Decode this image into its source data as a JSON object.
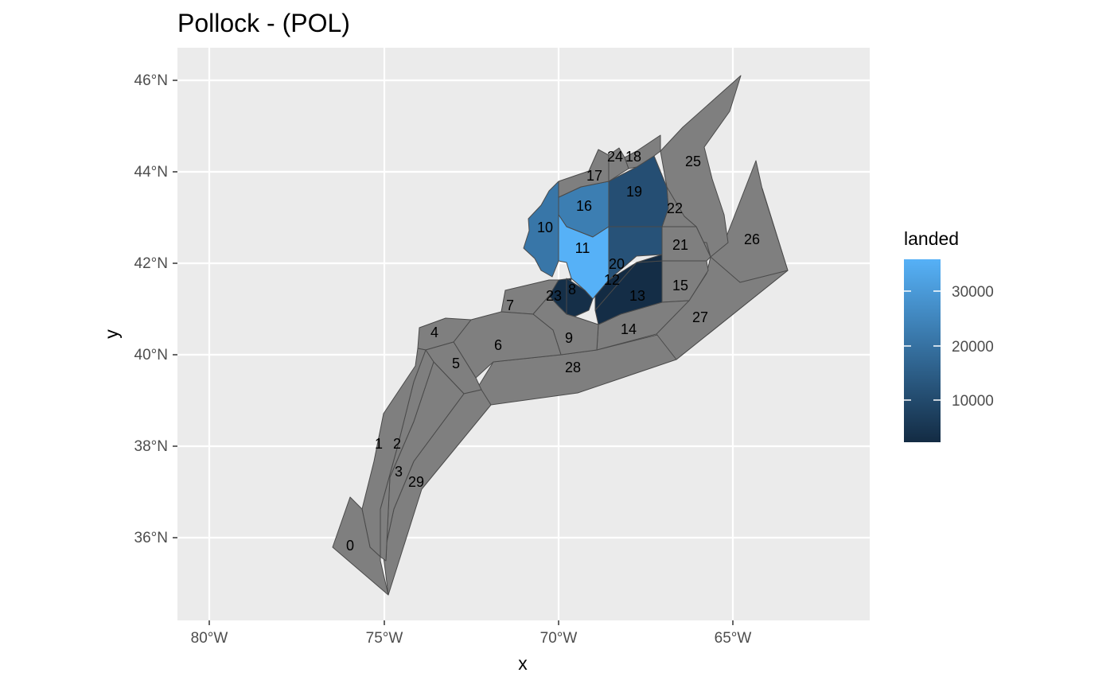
{
  "title": "Pollock - (POL)",
  "axes": {
    "xlabel": "x",
    "ylabel": "y",
    "x_ticks": [
      "80°W",
      "75°W",
      "70°W",
      "65°W"
    ],
    "y_ticks": [
      "36°N",
      "38°N",
      "40°N",
      "42°N",
      "44°N",
      "46°N"
    ]
  },
  "legend": {
    "title": "landed",
    "ticks": [
      "30000",
      "20000",
      "10000"
    ],
    "colors": {
      "high": "#56B1F7",
      "low": "#132B43"
    }
  },
  "colors": {
    "panel": "#EBEBEB",
    "grid": "#FFFFFF",
    "no_data": "#7F7F7F"
  },
  "zones": [
    {
      "id": "0",
      "landed": null
    },
    {
      "id": "1",
      "landed": null
    },
    {
      "id": "2",
      "landed": null
    },
    {
      "id": "3",
      "landed": null
    },
    {
      "id": "4",
      "landed": null
    },
    {
      "id": "5",
      "landed": null
    },
    {
      "id": "6",
      "landed": null
    },
    {
      "id": "7",
      "landed": null
    },
    {
      "id": "8",
      "landed": 3000
    },
    {
      "id": "9",
      "landed": null
    },
    {
      "id": "10",
      "landed": 21000
    },
    {
      "id": "11",
      "landed": 36000
    },
    {
      "id": "12",
      "landed": 2000
    },
    {
      "id": "13",
      "landed": 2500
    },
    {
      "id": "14",
      "landed": null
    },
    {
      "id": "15",
      "landed": null
    },
    {
      "id": "16",
      "landed": 23000
    },
    {
      "id": "17",
      "landed": null
    },
    {
      "id": "18",
      "landed": null
    },
    {
      "id": "19",
      "landed": 11000
    },
    {
      "id": "20",
      "landed": 12000
    },
    {
      "id": "21",
      "landed": null
    },
    {
      "id": "22",
      "landed": null
    },
    {
      "id": "23",
      "landed": 3000
    },
    {
      "id": "24",
      "landed": null
    },
    {
      "id": "25",
      "landed": null
    },
    {
      "id": "26",
      "landed": null
    },
    {
      "id": "27",
      "landed": null
    },
    {
      "id": "28",
      "landed": null
    },
    {
      "id": "29",
      "landed": null
    }
  ]
}
